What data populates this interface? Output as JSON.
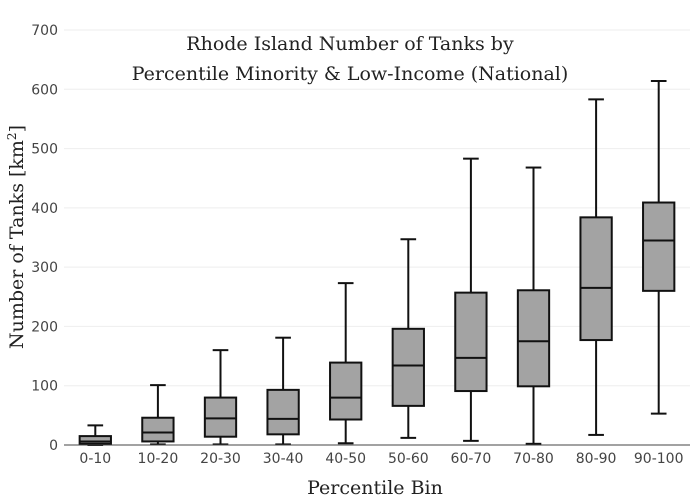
{
  "chart_data": {
    "type": "box",
    "title_lines": [
      "Rhode Island Number of Tanks by",
      "Percentile Minority & Low-Income (National)"
    ],
    "xlabel": "Percentile Bin",
    "ylabel_main": "Number of Tanks  [km",
    "ylabel_sup": "2",
    "ylabel_close": "]",
    "ylim": [
      0,
      700
    ],
    "yticks": [
      0,
      100,
      200,
      300,
      400,
      500,
      600,
      700
    ],
    "categories": [
      "0-10",
      "10-20",
      "20-30",
      "30-40",
      "40-50",
      "50-60",
      "60-70",
      "70-80",
      "80-90",
      "90-100"
    ],
    "boxes": [
      {
        "min": 0,
        "q1": 2,
        "median": 6,
        "q3": 15,
        "max": 33
      },
      {
        "min": 1,
        "q1": 6,
        "median": 21,
        "q3": 46,
        "max": 101
      },
      {
        "min": 1,
        "q1": 14,
        "median": 45,
        "q3": 80,
        "max": 160
      },
      {
        "min": 1,
        "q1": 18,
        "median": 44,
        "q3": 93,
        "max": 181
      },
      {
        "min": 3,
        "q1": 43,
        "median": 80,
        "q3": 139,
        "max": 273
      },
      {
        "min": 12,
        "q1": 66,
        "median": 134,
        "q3": 196,
        "max": 347
      },
      {
        "min": 7,
        "q1": 91,
        "median": 147,
        "q3": 257,
        "max": 483
      },
      {
        "min": 2,
        "q1": 99,
        "median": 175,
        "q3": 261,
        "max": 468
      },
      {
        "min": 17,
        "q1": 177,
        "median": 265,
        "q3": 384,
        "max": 583
      },
      {
        "min": 53,
        "q1": 260,
        "median": 345,
        "q3": 409,
        "max": 614
      }
    ],
    "grid": true,
    "box_fill": "#a3a3a3",
    "stroke_color": "#111111"
  }
}
